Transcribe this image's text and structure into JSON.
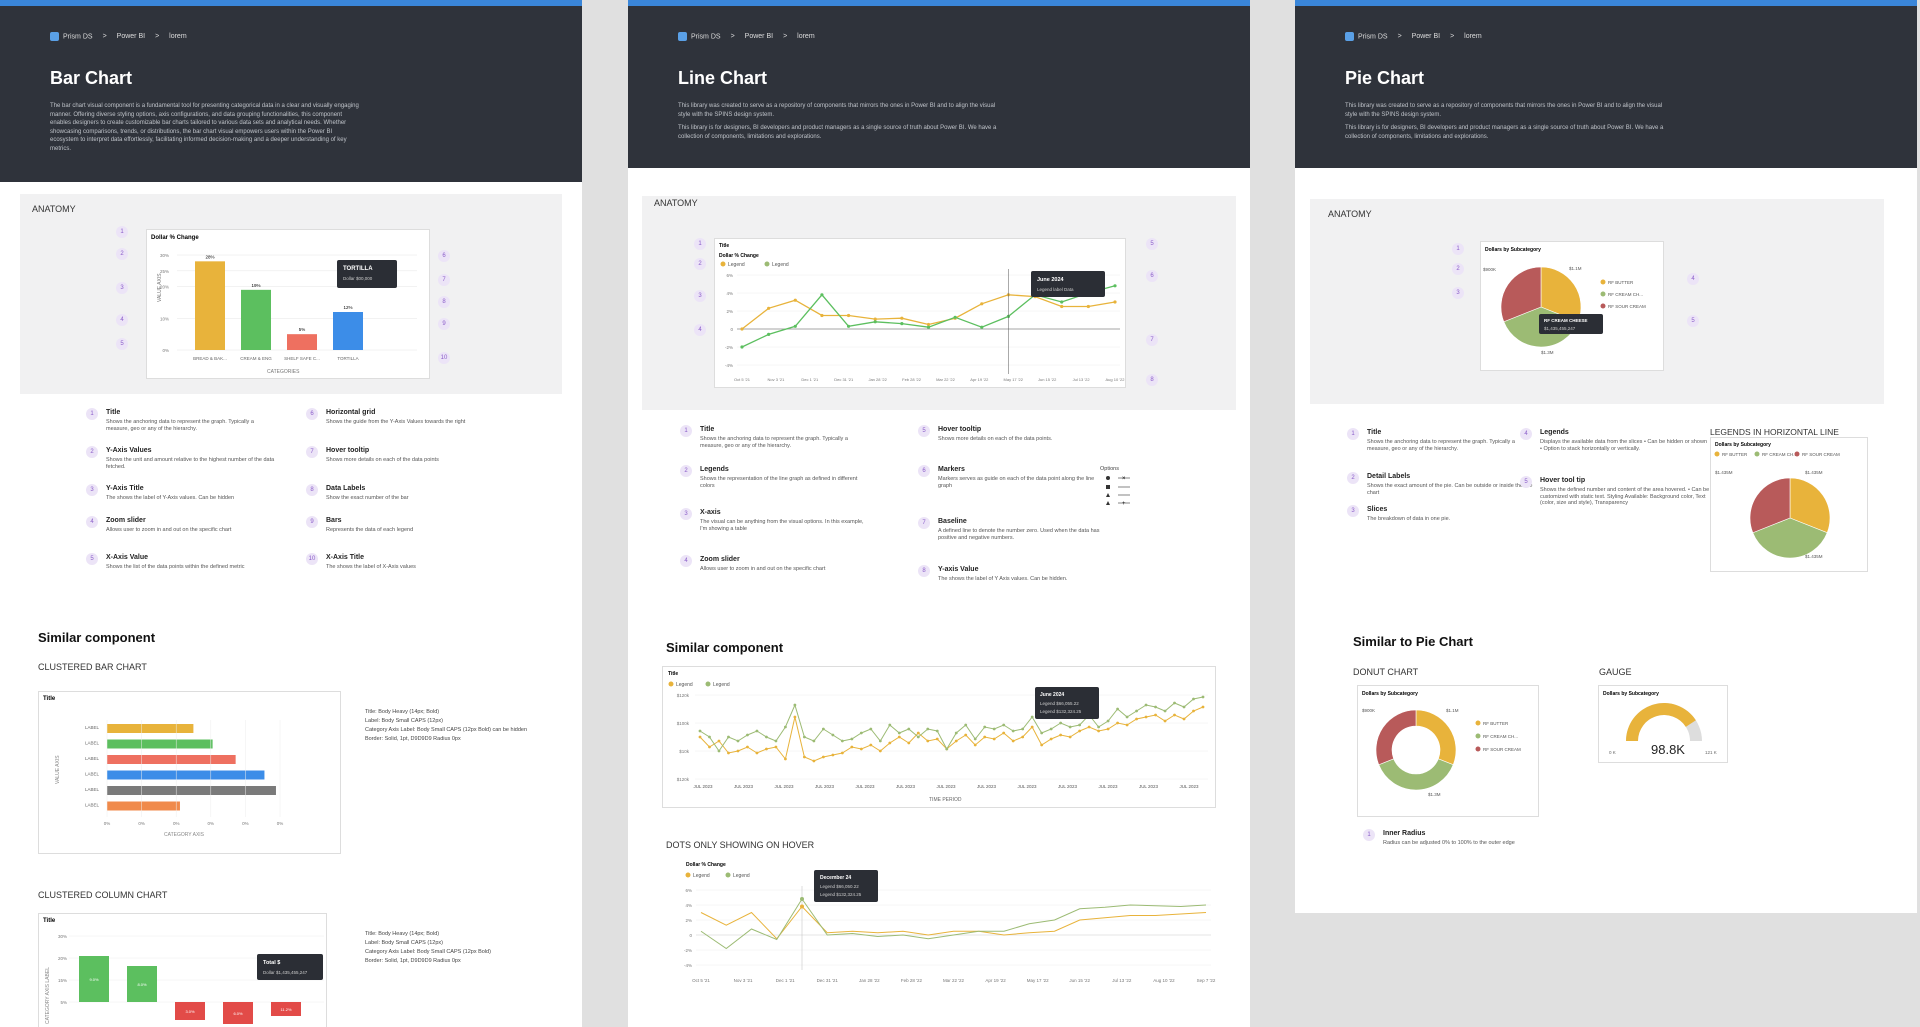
{
  "crumbs": {
    "brand": "Prism DS",
    "sep": ">",
    "level1": "Power BI",
    "level2": "lorem"
  },
  "bar_panel": {
    "title": "Bar Chart",
    "description": "The bar chart visual component is a fundamental tool for presenting categorical data in a clear and visually engaging manner. Offering diverse styling options, axis configurations, and data grouping functionalities, this component enables designers to create customizable bar charts tailored to various data sets and analytical needs. Whether showcasing comparisons, trends, or distributions, the bar chart visual empowers users within the Power BI ecosystem to interpret data effortlessly, facilitating informed decision-making and a deeper understanding of key metrics.",
    "anatomy_label": "ANATOMY",
    "anatomy_chart": {
      "title": "Dollar % Change",
      "ylabel": "VALUE AXIS",
      "xlabel": "CATEGORIES",
      "tooltip_title": "TORTILLA",
      "tooltip_line": "Dollar $00,000",
      "ticks": [
        "30%",
        "25%",
        "20%",
        "10%",
        "0%"
      ]
    },
    "items": [
      {
        "n": "1",
        "title": "Title",
        "desc": "Shows the anchoring data to represent the graph. Typically a measure, geo or any of the hierarchy."
      },
      {
        "n": "2",
        "title": "Y-Axis Values",
        "desc": "Shows the unit and amount relative to the highest number of the data fetched."
      },
      {
        "n": "3",
        "title": "Y-Axis Title",
        "desc": "The shows the label of Y-Axis values. Can be hidden"
      },
      {
        "n": "4",
        "title": "Zoom slider",
        "desc": "Allows user to zoom in and out on the specific chart"
      },
      {
        "n": "5",
        "title": "X-Axis Value",
        "desc": "Shows the list of the data points within the defined metric"
      },
      {
        "n": "6",
        "title": "Horizontal grid",
        "desc": "Shows the guide from the Y-Axis Values towards the right"
      },
      {
        "n": "7",
        "title": "Hover tooltip",
        "desc": "Shows more details on each of the data points"
      },
      {
        "n": "8",
        "title": "Data Labels",
        "desc": "Show the exact number of the bar"
      },
      {
        "n": "9",
        "title": "Bars",
        "desc": "Represents the data of each legend"
      },
      {
        "n": "10",
        "title": "X-Axis Title",
        "desc": "The shows the label of X-Axis values"
      }
    ],
    "similar_heading": "Similar component",
    "clustered_bar_label": "CLUSTERED BAR CHART",
    "clustered_bar": {
      "title": "Title",
      "ylabel": "VALUE AXIS",
      "xlabel": "CATEGORY AXIS",
      "row_label": "LABEL",
      "tick": "0%"
    },
    "clustered_bar_notes": [
      "Title: Body Heavy (14px; Bold)",
      "Label: Body Small CAPS (12px)",
      "Category Axis Label: Body Small CAPS (12px Bold) can be hidden",
      "Border: Solid, 1pt, D9D9D9 Radius 0px"
    ],
    "clustered_col_label": "CLUSTERED COLUMN CHART",
    "clustered_col": {
      "title": "Title",
      "ylabel": "CATEGORY AXIS LABEL",
      "ticks": [
        "30%",
        "20%",
        "15%",
        "5%"
      ],
      "tooltip_title": "Total $",
      "tooltip_line": "Dollar $1,435,455,247",
      "col_label": "LABEL"
    },
    "clustered_col_notes": [
      "Title: Body Heavy (14px; Bold)",
      "Label: Body Small CAPS (12px)",
      "Category Axis Label: Body Small CAPS (12px Bold)",
      "Border: Solid, 1pt, D9D9D9 Radius 0px"
    ]
  },
  "line_panel": {
    "title": "Line Chart",
    "desc1": "This library was created to serve as a repository of components that mirrors the ones in Power BI and to align the visual style with the SPINS design system.",
    "desc2": "This library is for designers, BI developers and product managers as a single source of truth about Power BI. We have a collection of components, limitations and explorations.",
    "anatomy_label": "ANATOMY",
    "anatomy_chart": {
      "title": "Title",
      "subtitle": "Dollar % Change",
      "legend": "Legend",
      "tooltip_title": "June 2024",
      "tooltip_line": "Legend label  Data",
      "x": [
        "Oct 5 '21",
        "Nov 3 '21",
        "Dec 1 '21",
        "Dec 31 '21",
        "Jan 28 '22",
        "Feb 28 '22",
        "Mar 22 '22",
        "Apr 19 '22",
        "May 17 '22",
        "Jun 15 '22",
        "Jul 13 '22",
        "Aug 10 '22"
      ],
      "ticks": [
        "6%",
        "4%",
        "2%",
        "0",
        "-2%",
        "-4%"
      ]
    },
    "items": [
      {
        "n": "1",
        "title": "Title",
        "desc": "Shows the anchoring data to represent the graph. Typically a measure, geo or any of the hierarchy."
      },
      {
        "n": "2",
        "title": "Legends",
        "desc": "Shows the representation of the line graph as defined in different colors"
      },
      {
        "n": "3",
        "title": "X-axis",
        "desc": "The visual can be anything from the visual options. In this example, I'm showing a table"
      },
      {
        "n": "4",
        "title": "Zoom slider",
        "desc": "Allows user to zoom in and out on the specific chart"
      },
      {
        "n": "5",
        "title": "Hover tooltip",
        "desc": "Shows more details on each of the data points."
      },
      {
        "n": "6",
        "title": "Markers",
        "desc": "Markers serves as guide on each of the data point along the line graph"
      },
      {
        "n": "7",
        "title": "Baseline",
        "desc": "A defined line to denote the number zero. Used when the data has positive and negative numbers."
      },
      {
        "n": "8",
        "title": "Y-axis Value",
        "desc": "The shows the label of Y Axis values. Can be hidden."
      }
    ],
    "options_label": "Options",
    "similar_heading": "Similar component",
    "similar_chart": {
      "title": "Title",
      "legend": "Legend",
      "tooltip_title": "June 2024",
      "tooltip_l1": "Legend $66,055.22",
      "tooltip_l2": "Legend $132,324.25",
      "xlabel": "TIME PERIOD",
      "xtick": "JUL 2023",
      "ticks": [
        "$120k",
        "$100k",
        "$10k",
        "$120k"
      ]
    },
    "dots_label": "DOTS ONLY SHOWING ON HOVER",
    "dots_chart": {
      "title": "Dollar % Change",
      "legend": "Legend",
      "tooltip_title": "December 24",
      "tooltip_l1": "Legend $66,050.22",
      "tooltip_l2": "Legend $132,324.25",
      "x": [
        "Oct 5 '21",
        "Nov 3 '21",
        "Dec 1 '21",
        "Dec 31 '21",
        "Jan 28 '22",
        "Feb 28 '22",
        "Mar 22 '22",
        "Apr 19 '22",
        "May 17 '22",
        "Jun 15 '22",
        "Jul 13 '22",
        "Aug 10 '22",
        "Sep 7 '22"
      ],
      "ticks": [
        "6%",
        "4%",
        "2%",
        "0",
        "-2%",
        "-4%"
      ]
    }
  },
  "pie_panel": {
    "title": "Pie Chart",
    "desc1": "This library was created to serve as a repository of components that mirrors the ones in Power BI and to align the visual style with the SPINS design system.",
    "desc2": "This library is for designers, BI developers and product managers as a single source of truth about Power BI. We have a collection of components, limitations and explorations.",
    "anatomy_label": "ANATOMY",
    "anatomy_chart": {
      "title": "Dollars by Subcategory",
      "l1": "$1.1M",
      "l2": "$900K",
      "l3": "$1.3M",
      "legend": [
        "RF BUTTER",
        "RF CREAM CH...",
        "RF SOUR CREAM"
      ],
      "tooltip_title": "RF CREAM CHEESE",
      "tooltip_line": "$1,435,455,247"
    },
    "items": [
      {
        "n": "1",
        "title": "Title",
        "desc": "Shows the anchoring data to represent the graph. Typically a measure, geo or any of the hierarchy."
      },
      {
        "n": "2",
        "title": "Detail Labels",
        "desc": "Shows the exact amount of the pie. Can be outside or inside the Pie chart"
      },
      {
        "n": "3",
        "title": "Slices",
        "desc": "The breakdown of data in one pie."
      },
      {
        "n": "4",
        "title": "Legends",
        "desc": "Displays the available data from the slices • Can be hidden or shown • Option to stack horizontally or vertically."
      },
      {
        "n": "5",
        "title": "Hover tool tip",
        "desc": "Shows the defined number and content of the area hovered. • Can be customized with static text. Styling Available: Background color, Text (color, size and style), Transparency"
      }
    ],
    "legends_horizontal_label": "LEGENDS IN HORIZONTAL LINE",
    "legends_horizontal_chart": {
      "title": "Dollars by Subcategory",
      "legend": [
        "RF BUTTER",
        "RF CREAM CH...",
        "RF SOUR CREAM"
      ],
      "l1": "$1.435M",
      "l2": "$1.435M",
      "l3": "$1.435M"
    },
    "similar_heading": "Similar to Pie Chart",
    "donut_label": "DONUT CHART",
    "donut_chart": {
      "title": "Dollars by Subcategory",
      "l1": "$1.1M",
      "l2": "$900K",
      "l3": "$1.3M",
      "legend": [
        "RF BUTTER",
        "RF CREAM CH...",
        "RF SOUR CREAM"
      ]
    },
    "gauge_label": "GAUGE",
    "gauge_chart": {
      "title": "Dollars by Subcategory",
      "value": "98.8K",
      "min": "0 K",
      "max": "121 K"
    },
    "inner_radius": {
      "n": "1",
      "title": "Inner Radius",
      "desc": "Radius can be adjusted 0% to 100% to the outer edge"
    }
  },
  "colors": {
    "header": "#2f333b",
    "accent": "#3a86d9",
    "yellow": "#e8b33b",
    "green": "#5cbf5f",
    "salmon": "#ee7060",
    "blue": "#3c8de8",
    "gray": "#7a7a7a",
    "orange": "#f08a4b",
    "olive": "#9cbb74",
    "red": "#e24b48",
    "maroon": "#b85a5a",
    "purple": "#8a5cc9"
  }
}
